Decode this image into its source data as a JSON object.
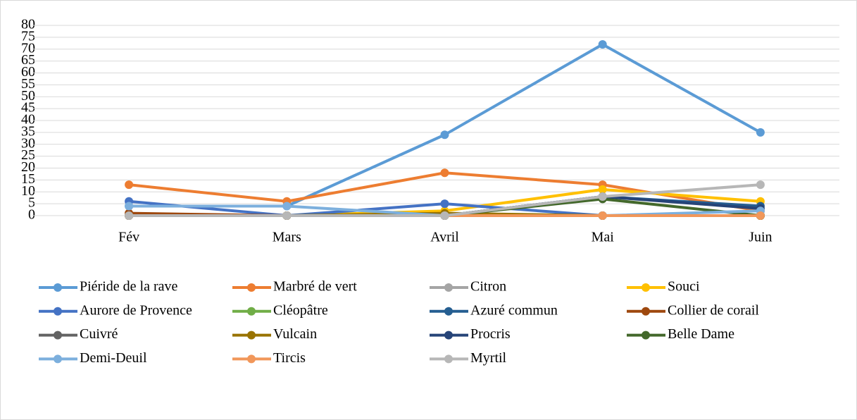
{
  "chart_data": {
    "type": "line",
    "categories": [
      "Fév",
      "Mars",
      "Avril",
      "Mai",
      "Juin"
    ],
    "ylim": [
      0,
      80
    ],
    "yticks": [
      0,
      5,
      10,
      15,
      20,
      25,
      30,
      35,
      40,
      45,
      50,
      55,
      60,
      65,
      70,
      75,
      80
    ],
    "grid": true,
    "legend": "bottom",
    "series": [
      {
        "name": "Piéride de la rave",
        "color": "#5b9bd5",
        "values": [
          4,
          4,
          34,
          72,
          35
        ]
      },
      {
        "name": "Marbré de vert",
        "color": "#ed7d31",
        "values": [
          13,
          6,
          18,
          13,
          2
        ]
      },
      {
        "name": "Citron",
        "color": "#a5a5a5",
        "values": [
          0,
          0,
          0,
          0,
          0
        ]
      },
      {
        "name": "Souci",
        "color": "#ffc000",
        "values": [
          0,
          0,
          2,
          11,
          6
        ]
      },
      {
        "name": "Aurore de Provence",
        "color": "#4472c4",
        "values": [
          6,
          0,
          5,
          0,
          0
        ]
      },
      {
        "name": "Cléopâtre",
        "color": "#70ad47",
        "values": [
          0,
          0,
          0,
          0,
          0
        ]
      },
      {
        "name": "Azuré commun",
        "color": "#255e91",
        "values": [
          0,
          0,
          0,
          8,
          4
        ]
      },
      {
        "name": "Collier de corail",
        "color": "#9e480e",
        "values": [
          1,
          0,
          0,
          0,
          0
        ]
      },
      {
        "name": "Cuivré",
        "color": "#636363",
        "values": [
          0,
          0,
          0,
          0,
          0
        ]
      },
      {
        "name": "Vulcain",
        "color": "#997300",
        "values": [
          0,
          0,
          1,
          0,
          0
        ]
      },
      {
        "name": "Procris",
        "color": "#264478",
        "values": [
          0,
          0,
          0,
          8,
          3
        ]
      },
      {
        "name": "Belle Dame",
        "color": "#43682b",
        "values": [
          0,
          0,
          0,
          7,
          0
        ]
      },
      {
        "name": "Demi-Deuil",
        "color": "#7cafdd",
        "values": [
          4,
          4,
          0,
          0,
          2
        ]
      },
      {
        "name": "Tircis",
        "color": "#f1975a",
        "values": [
          0,
          0,
          0,
          0,
          0
        ]
      },
      {
        "name": "Myrtil",
        "color": "#b7b7b7",
        "values": [
          0,
          0,
          0,
          8,
          13
        ]
      }
    ]
  }
}
